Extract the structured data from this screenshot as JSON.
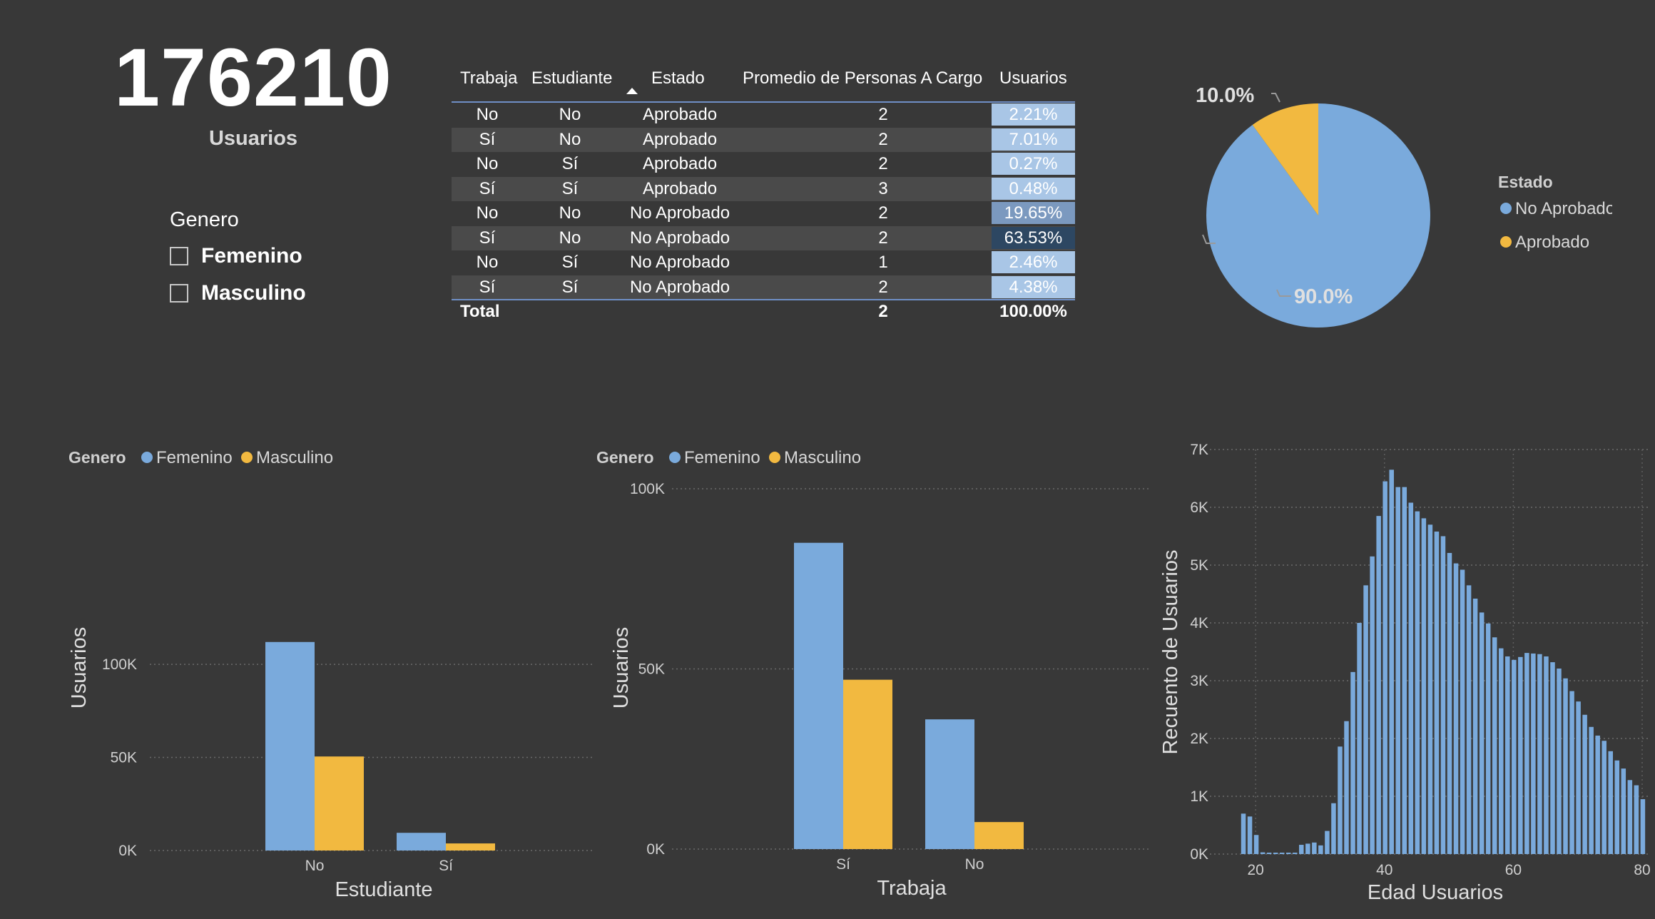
{
  "kpi": {
    "value": "176210",
    "label": "Usuarios"
  },
  "slicer": {
    "title": "Genero",
    "items": [
      {
        "label": "Femenino"
      },
      {
        "label": "Masculino"
      }
    ]
  },
  "colors": {
    "blue": "#7aaadc",
    "yellow": "#f2b940",
    "background": "#383838"
  },
  "table": {
    "headers": [
      "Trabaja",
      "Estudiante",
      "Estado",
      "Promedio de Personas A Cargo",
      "Usuarios"
    ],
    "rows": [
      [
        "No",
        "No",
        "Aprobado",
        "2",
        "2.21%"
      ],
      [
        "Sí",
        "No",
        "Aprobado",
        "2",
        "7.01%"
      ],
      [
        "No",
        "Sí",
        "Aprobado",
        "2",
        "0.27%"
      ],
      [
        "Sí",
        "Sí",
        "Aprobado",
        "3",
        "0.48%"
      ],
      [
        "No",
        "No",
        "No Aprobado",
        "2",
        "19.65%"
      ],
      [
        "Sí",
        "No",
        "No Aprobado",
        "2",
        "63.53%"
      ],
      [
        "No",
        "Sí",
        "No Aprobado",
        "1",
        "2.46%"
      ],
      [
        "Sí",
        "Sí",
        "No Aprobado",
        "2",
        "4.38%"
      ]
    ],
    "total": {
      "label": "Total",
      "promedio": "2",
      "usuarios": "100.00%"
    }
  },
  "chart_data": [
    {
      "type": "pie",
      "legend_title": "Estado",
      "legend_position": "right",
      "slices": [
        {
          "name": "No Aprobado",
          "value": 90.0,
          "label": "90.0%",
          "color": "#7aaadc"
        },
        {
          "name": "Aprobado",
          "value": 10.0,
          "label": "10.0%",
          "color": "#f2b940"
        }
      ]
    },
    {
      "type": "bar",
      "legend_title": "Genero",
      "legend_position": "top-left",
      "categories": [
        "No",
        "Sí"
      ],
      "series": [
        {
          "name": "Femenino",
          "values": [
            112000,
            9500
          ],
          "color": "#7aaadc"
        },
        {
          "name": "Masculino",
          "values": [
            50500,
            3800
          ],
          "color": "#f2b940"
        }
      ],
      "xlabel": "Estudiante",
      "ylabel": "Usuarios",
      "ylim": [
        0,
        110000
      ],
      "yticks": [
        0,
        50000,
        100000
      ],
      "ytick_labels": [
        "0K",
        "50K",
        "100K"
      ],
      "grid": true
    },
    {
      "type": "bar",
      "legend_title": "Genero",
      "legend_position": "top-left",
      "categories": [
        "Sí",
        "No"
      ],
      "series": [
        {
          "name": "Femenino",
          "values": [
            85000,
            36000
          ],
          "color": "#7aaadc"
        },
        {
          "name": "Masculino",
          "values": [
            47000,
            7500
          ],
          "color": "#f2b940"
        }
      ],
      "xlabel": "Trabaja",
      "ylabel": "Usuarios",
      "ylim": [
        0,
        100000
      ],
      "yticks": [
        0,
        50000,
        100000
      ],
      "ytick_labels": [
        "0K",
        "50K",
        "100K"
      ],
      "grid": true
    },
    {
      "type": "bar",
      "subtype": "histogram",
      "x": [
        18,
        19,
        20,
        21,
        22,
        23,
        24,
        25,
        26,
        27,
        28,
        29,
        30,
        31,
        32,
        33,
        34,
        35,
        36,
        37,
        38,
        39,
        40,
        41,
        42,
        43,
        44,
        45,
        46,
        47,
        48,
        49,
        50,
        51,
        52,
        53,
        54,
        55,
        56,
        57,
        58,
        59,
        60,
        61,
        62,
        63,
        64,
        65,
        66,
        67,
        68,
        69,
        70,
        71,
        72,
        73,
        74,
        75,
        76,
        77,
        78,
        79,
        80
      ],
      "values": [
        700,
        650,
        330,
        30,
        20,
        20,
        20,
        20,
        20,
        160,
        180,
        200,
        150,
        400,
        880,
        1860,
        2300,
        3150,
        4000,
        4650,
        5150,
        5850,
        6450,
        6650,
        6350,
        6350,
        6080,
        5930,
        5810,
        5700,
        5580,
        5500,
        5210,
        5030,
        4920,
        4650,
        4420,
        4180,
        3990,
        3750,
        3560,
        3420,
        3360,
        3410,
        3480,
        3470,
        3460,
        3420,
        3320,
        3210,
        3040,
        2820,
        2640,
        2410,
        2200,
        2050,
        1960,
        1780,
        1620,
        1480,
        1280,
        1190,
        950
      ],
      "xlabel": "Edad Usuarios",
      "ylabel": "Recuento de Usuarios",
      "xlim": [
        14,
        80
      ],
      "xticks": [
        20,
        40,
        60,
        80
      ],
      "ylim": [
        0,
        7000
      ],
      "yticks": [
        0,
        1000,
        2000,
        3000,
        4000,
        5000,
        6000,
        7000
      ],
      "ytick_labels": [
        "0K",
        "1K",
        "2K",
        "3K",
        "4K",
        "5K",
        "6K",
        "7K"
      ],
      "grid": true,
      "color": "#7aaadc"
    }
  ]
}
